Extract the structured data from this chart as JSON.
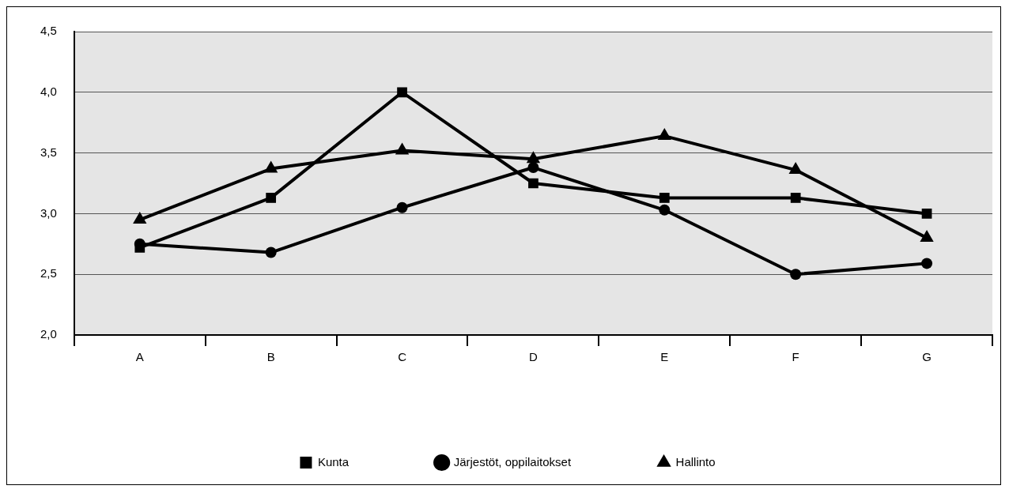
{
  "chart_data": {
    "type": "line",
    "categories": [
      "A",
      "B",
      "C",
      "D",
      "E",
      "F",
      "G"
    ],
    "series": [
      {
        "name": "Järjestöt, oppilaitokset",
        "color": "#000000",
        "marker": "circle",
        "values": [
          2.75,
          2.68,
          3.05,
          3.38,
          3.03,
          2.5,
          2.59
        ]
      },
      {
        "name": "Kunta",
        "color": "#000000",
        "marker": "square",
        "values": [
          2.72,
          3.13,
          4.0,
          3.25,
          3.13,
          3.13,
          3.0
        ]
      },
      {
        "name": "Hallinto",
        "color": "#000000",
        "marker": "triangle",
        "values": [
          2.95,
          3.37,
          3.52,
          3.45,
          3.64,
          3.36,
          2.8
        ]
      }
    ],
    "ylim": [
      2.0,
      4.5
    ],
    "yticks": [
      {
        "value": 2.0,
        "label": "2,0"
      },
      {
        "value": 2.5,
        "label": "2,5"
      },
      {
        "value": 3.0,
        "label": "3,0"
      },
      {
        "value": 3.5,
        "label": "3,5"
      },
      {
        "value": 4.0,
        "label": "4,0"
      },
      {
        "value": 4.5,
        "label": "4,5"
      }
    ],
    "grid": "y",
    "legend": "bottom",
    "line_style": "solid"
  }
}
